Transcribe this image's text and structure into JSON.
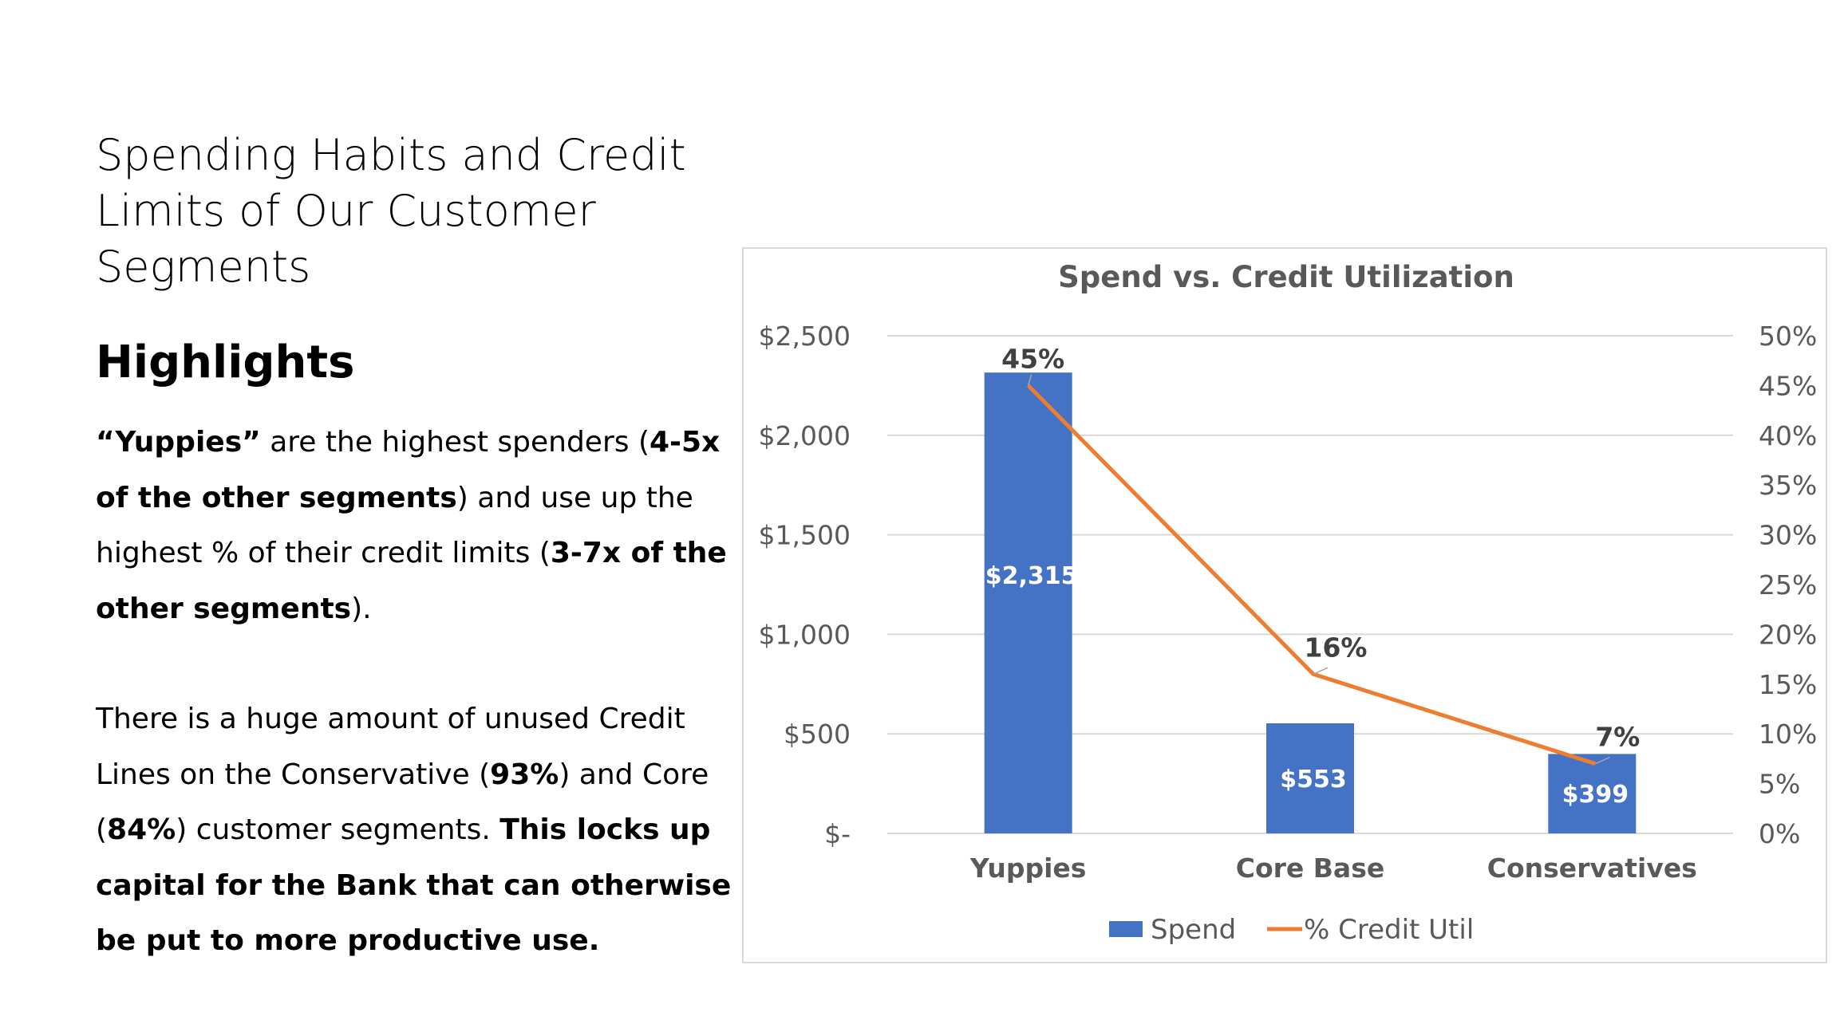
{
  "slide": {
    "title_lines": [
      "Spending Habits and Credit",
      "Limits of Our Customer",
      "Segments"
    ],
    "highlights_heading": "Highlights",
    "para1": {
      "s1": "“Yuppies”",
      "s2": " are the highest spenders (",
      "s3": "4-5x of the other segments",
      "s4": ") and use up the highest % of their credit limits (",
      "s5": "3-7x of the other segments",
      "s6": ")."
    },
    "para2": {
      "s1": "There is a huge amount of unused Credit Lines on the Conservative (",
      "s2": "93%",
      "s3": ") and Core (",
      "s4": "84%",
      "s5": ") customer segments. ",
      "s6": "This locks up capital for the Bank that can otherwise be put to more productive use."
    }
  },
  "chart_data": {
    "type": "bar",
    "title": "Spend vs. Credit Utilization",
    "categories": [
      "Yuppies",
      "Core Base",
      "Conservatives"
    ],
    "series": [
      {
        "name": "Spend",
        "type": "bar",
        "axis": "left",
        "values": [
          2315,
          553,
          399
        ],
        "labels": [
          "$2,315",
          "$553",
          "$399"
        ],
        "color": "#4472C4"
      },
      {
        "name": "% Credit Util",
        "type": "line",
        "axis": "right",
        "values": [
          45,
          16,
          7
        ],
        "labels": [
          "45%",
          "16%",
          "7%"
        ],
        "color": "#ED7D31"
      }
    ],
    "y_left": {
      "ylim": [
        0,
        2500
      ],
      "ticks": [
        0,
        500,
        1000,
        1500,
        2000,
        2500
      ],
      "tick_labels": [
        "$-",
        "$500",
        "$1,000",
        "$1,500",
        "$2,000",
        "$2,500"
      ]
    },
    "y_right": {
      "ylim": [
        0,
        50
      ],
      "ticks": [
        0,
        5,
        10,
        15,
        20,
        25,
        30,
        35,
        40,
        45,
        50
      ],
      "tick_labels": [
        "0%",
        "5%",
        "10%",
        "15%",
        "20%",
        "25%",
        "30%",
        "35%",
        "40%",
        "45%",
        "50%"
      ]
    },
    "grid": true,
    "legend_position": "bottom",
    "gridline_color": "#d9d9d9",
    "axis_text_color": "#595959"
  }
}
